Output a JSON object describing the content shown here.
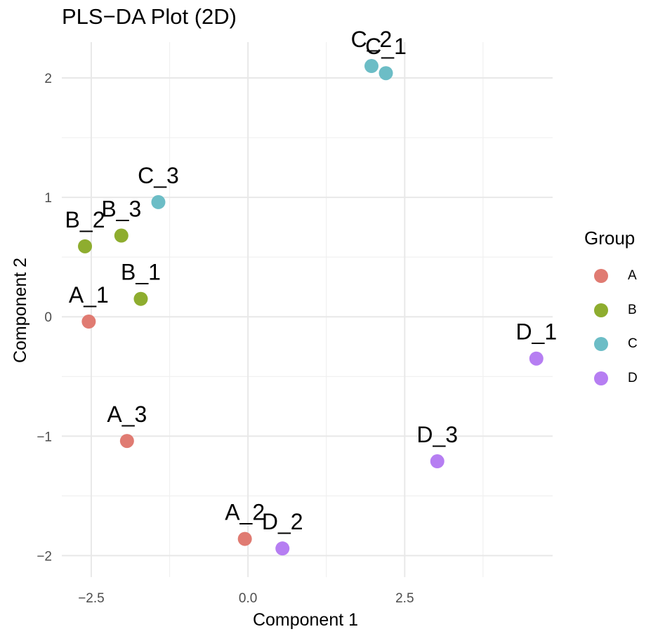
{
  "chart_data": {
    "type": "scatter",
    "title": "PLS−DA Plot (2D)",
    "xlabel": "Component 1",
    "ylabel": "Component 2",
    "xlim": [
      -2.97,
      4.86
    ],
    "ylim": [
      -2.18,
      2.3
    ],
    "grid": true,
    "x_ticks": [
      -2.5,
      0.0,
      2.5
    ],
    "x_tick_labels": [
      "−2.5",
      "0.0",
      "2.5"
    ],
    "y_ticks": [
      -2,
      -1,
      0,
      1,
      2
    ],
    "y_tick_labels": [
      "−2",
      "−1",
      "0",
      "1",
      "2"
    ],
    "legend_title": "Group",
    "legend_position": "right",
    "groups": [
      {
        "name": "A",
        "color": "#E07B72"
      },
      {
        "name": "B",
        "color": "#8EAD2F"
      },
      {
        "name": "C",
        "color": "#6CBDC6"
      },
      {
        "name": "D",
        "color": "#B67EF2"
      }
    ],
    "points": [
      {
        "label": "A_1",
        "group": "A",
        "x": -2.54,
        "y": -0.04
      },
      {
        "label": "A_2",
        "group": "A",
        "x": -0.05,
        "y": -1.86
      },
      {
        "label": "A_3",
        "group": "A",
        "x": -1.93,
        "y": -1.04
      },
      {
        "label": "B_1",
        "group": "B",
        "x": -1.71,
        "y": 0.15
      },
      {
        "label": "B_2",
        "group": "B",
        "x": -2.6,
        "y": 0.59
      },
      {
        "label": "B_3",
        "group": "B",
        "x": -2.02,
        "y": 0.68
      },
      {
        "label": "C_1",
        "group": "C",
        "x": 2.2,
        "y": 2.04
      },
      {
        "label": "C_2",
        "group": "C",
        "x": 1.97,
        "y": 2.1
      },
      {
        "label": "C_3",
        "group": "C",
        "x": -1.43,
        "y": 0.96
      },
      {
        "label": "D_1",
        "group": "D",
        "x": 4.6,
        "y": -0.35
      },
      {
        "label": "D_2",
        "group": "D",
        "x": 0.55,
        "y": -1.94
      },
      {
        "label": "D_3",
        "group": "D",
        "x": 3.02,
        "y": -1.21
      }
    ]
  }
}
